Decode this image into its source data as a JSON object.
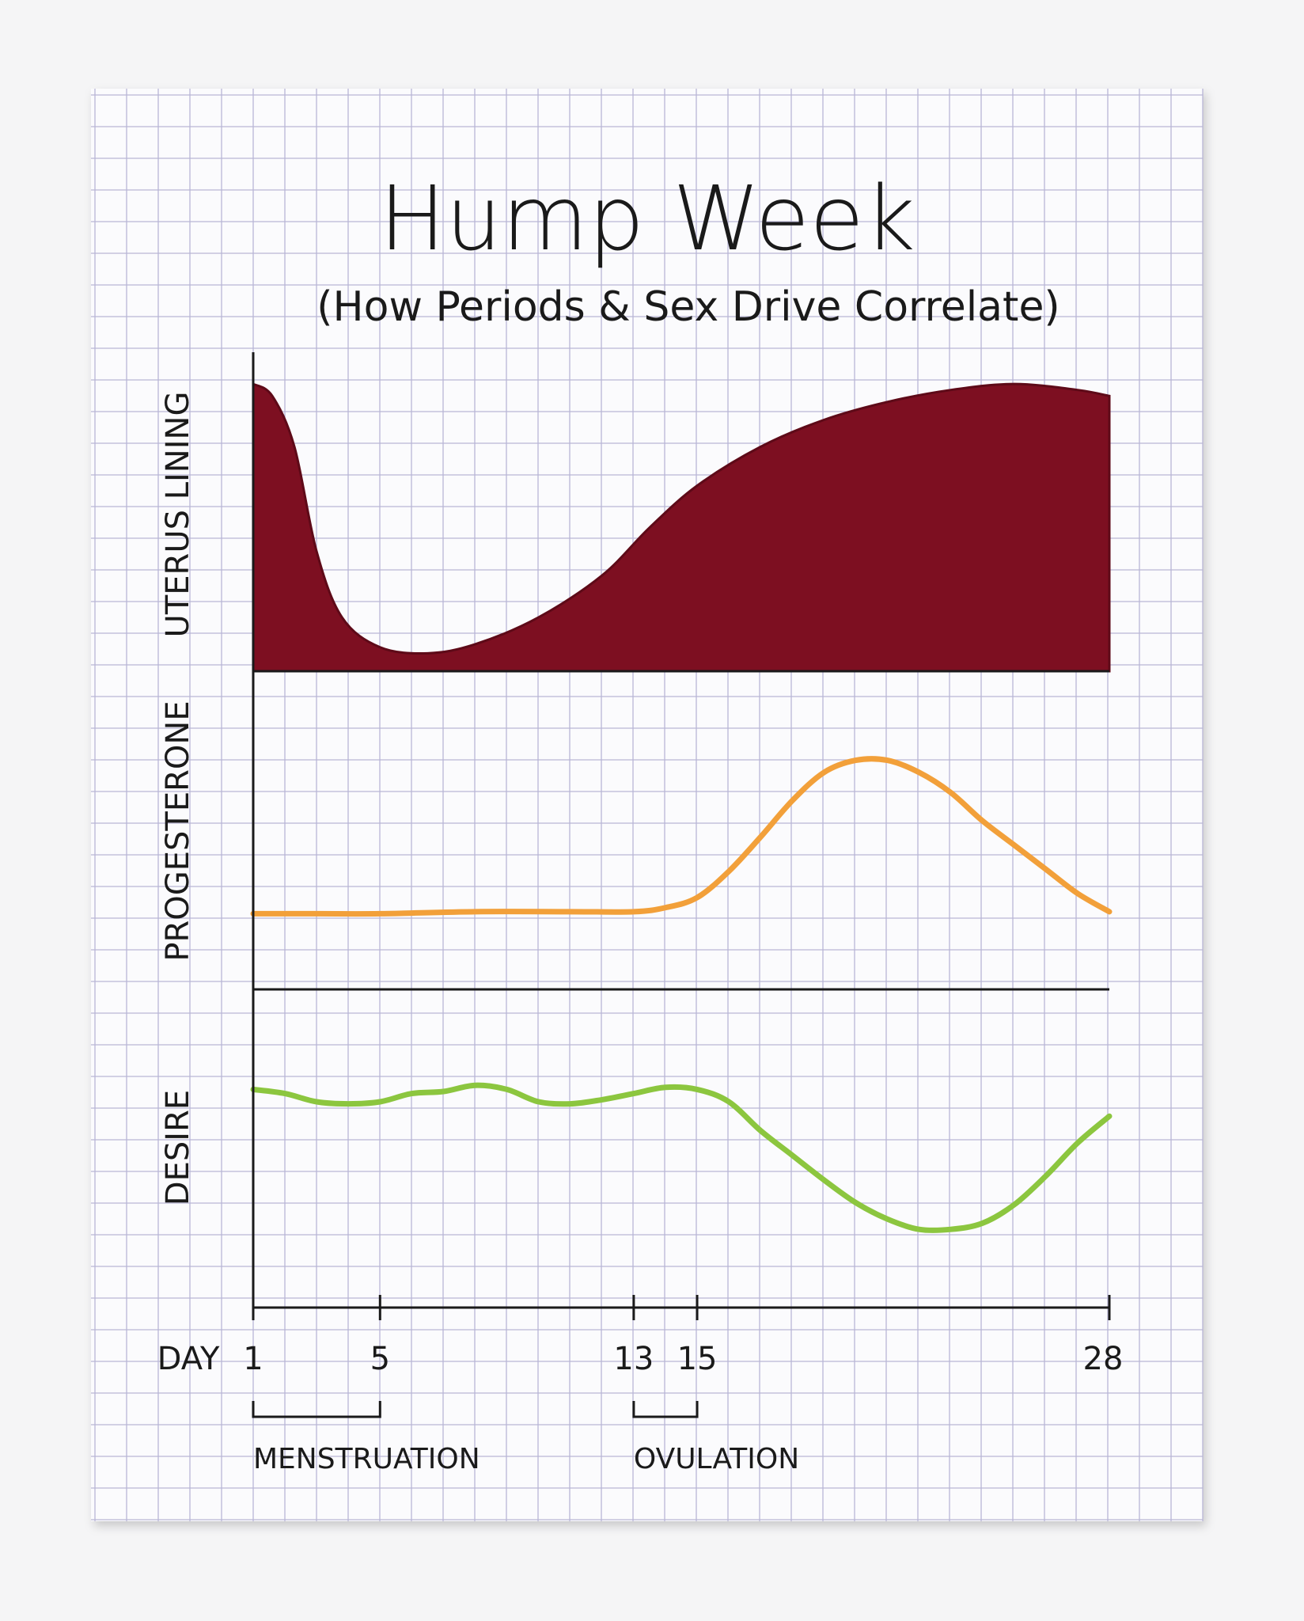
{
  "colors": {
    "background": "#f5f5f6",
    "paper": "#fbfbfd",
    "grid": "#b9b6d6",
    "ink": "#1a1a1a",
    "uterus_fill": "#7d0f21",
    "progesterone": "#f2a03a",
    "desire": "#8cc63f"
  },
  "chart_data": {
    "type": "line",
    "title": "Hump Week",
    "subtitle": "(How Periods & Sex Drive Correlate)",
    "xlabel": "DAY",
    "x_ticks": [
      1,
      5,
      13,
      15,
      28
    ],
    "x_tick_labels": [
      "1",
      "5",
      "13",
      "15",
      "28"
    ],
    "x_range": [
      1,
      28
    ],
    "y_axis_ticks_shown": false,
    "grid": true,
    "panels": [
      {
        "name": "UTERUS LINING",
        "type": "area",
        "ylim": [
          0,
          100
        ],
        "points": [
          [
            1,
            96
          ],
          [
            1.6,
            92
          ],
          [
            2.3,
            75
          ],
          [
            3,
            40
          ],
          [
            3.8,
            18
          ],
          [
            5,
            8
          ],
          [
            6.5,
            6
          ],
          [
            8,
            9
          ],
          [
            10,
            18
          ],
          [
            12,
            32
          ],
          [
            13.5,
            48
          ],
          [
            15,
            62
          ],
          [
            17,
            75
          ],
          [
            19,
            84
          ],
          [
            21,
            90
          ],
          [
            23,
            94
          ],
          [
            25,
            96
          ],
          [
            27,
            94
          ],
          [
            28,
            92
          ]
        ]
      },
      {
        "name": "PROGESTERONE",
        "type": "line",
        "ylim": [
          0,
          100
        ],
        "points": [
          [
            1,
            12
          ],
          [
            3,
            12
          ],
          [
            5,
            12
          ],
          [
            8,
            13
          ],
          [
            11,
            13
          ],
          [
            13,
            13
          ],
          [
            14,
            15
          ],
          [
            15,
            20
          ],
          [
            16,
            33
          ],
          [
            17,
            50
          ],
          [
            18,
            68
          ],
          [
            19,
            82
          ],
          [
            20,
            88
          ],
          [
            21,
            88
          ],
          [
            22,
            82
          ],
          [
            23,
            72
          ],
          [
            24,
            58
          ],
          [
            25,
            46
          ],
          [
            26,
            34
          ],
          [
            27,
            22
          ],
          [
            28,
            13
          ]
        ]
      },
      {
        "name": "DESIRE",
        "type": "line",
        "ylim": [
          0,
          100
        ],
        "points": [
          [
            1,
            86
          ],
          [
            2,
            84
          ],
          [
            3,
            80
          ],
          [
            4,
            79
          ],
          [
            5,
            80
          ],
          [
            6,
            84
          ],
          [
            7,
            85
          ],
          [
            8,
            88
          ],
          [
            9,
            86
          ],
          [
            10,
            80
          ],
          [
            11,
            79
          ],
          [
            12,
            81
          ],
          [
            13,
            84
          ],
          [
            14,
            87
          ],
          [
            15,
            86
          ],
          [
            16,
            80
          ],
          [
            17,
            66
          ],
          [
            18,
            54
          ],
          [
            19,
            42
          ],
          [
            20,
            31
          ],
          [
            21,
            23
          ],
          [
            22,
            18
          ],
          [
            23,
            18
          ],
          [
            24,
            21
          ],
          [
            25,
            30
          ],
          [
            26,
            44
          ],
          [
            27,
            60
          ],
          [
            28,
            73
          ]
        ]
      }
    ],
    "annotations": [
      {
        "label": "MENSTRUATION",
        "range": [
          1,
          5
        ]
      },
      {
        "label": "OVULATION",
        "range": [
          13,
          15
        ]
      }
    ]
  }
}
